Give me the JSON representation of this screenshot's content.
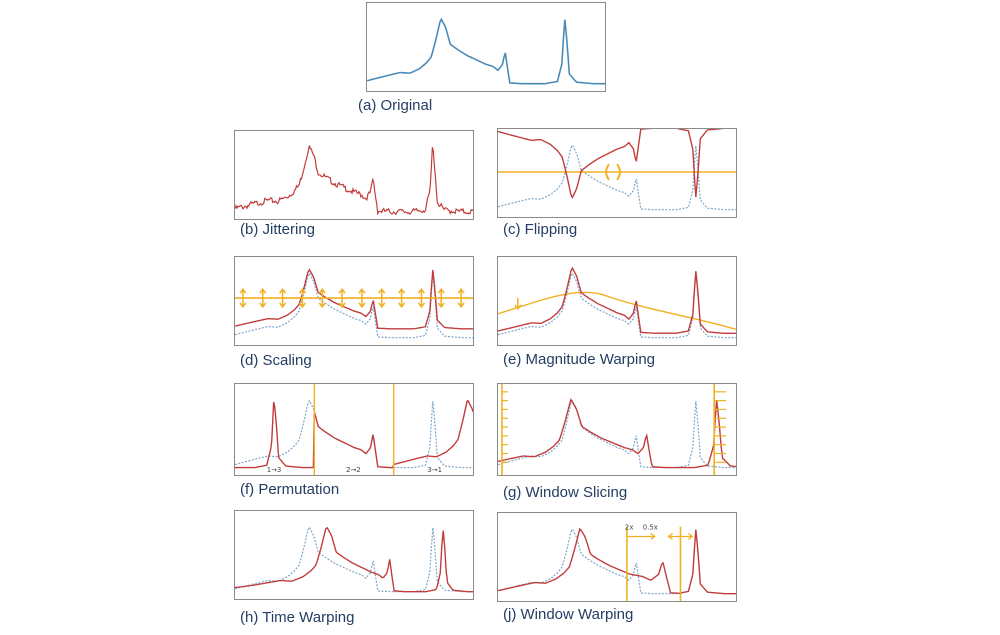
{
  "colors": {
    "original": "#4a8ab8",
    "augmented": "#c23b3b",
    "reference": "#7aa4c8",
    "guide": "#f0b020",
    "border": "#8a8a8a",
    "caption": "#233d63"
  },
  "panels": {
    "original": {
      "caption": "(a) Original"
    },
    "jittering": {
      "caption": "(b) Jittering"
    },
    "flipping": {
      "caption": "(c) Flipping"
    },
    "scaling": {
      "caption": "(d) Scaling"
    },
    "magnitude_warping": {
      "caption": "(e) Magnitude Warping"
    },
    "permutation": {
      "caption": "(f) Permutation",
      "labels": [
        "1→3",
        "2→2",
        "3→1"
      ]
    },
    "window_slicing": {
      "caption": "(g) Window Slicing"
    },
    "time_warping": {
      "caption": "(h) Time Warping"
    },
    "window_warping": {
      "caption": "(j) Window Warping",
      "labels": [
        "2x",
        "0.5x"
      ]
    }
  }
}
